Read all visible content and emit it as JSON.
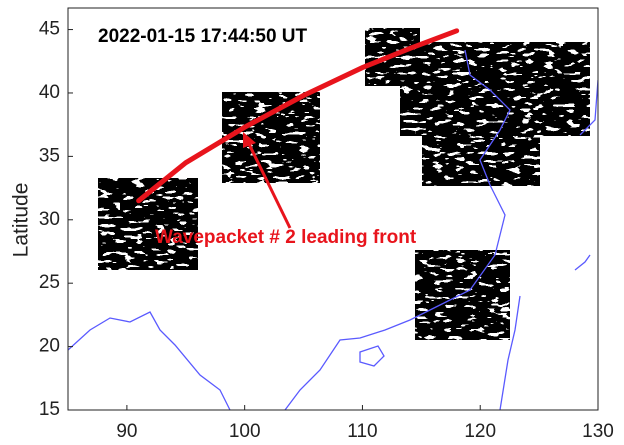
{
  "chart_data": {
    "type": "map",
    "timestamp": "2022-01-15 17:44:50 UT",
    "ylabel": "Latitude",
    "annotation": "Wavepacket # 2 leading front",
    "xlim": [
      85,
      130
    ],
    "xticks": [
      90,
      100,
      110,
      120,
      130
    ],
    "ylim": [
      15,
      46.7
    ],
    "yticks": [
      15,
      20,
      25,
      30,
      35,
      40,
      45
    ],
    "front": {
      "color": "#e8141c",
      "x": [
        91,
        95,
        100,
        105,
        110,
        114,
        118
      ],
      "y": [
        31.5,
        34.5,
        37.3,
        39.8,
        42,
        43.5,
        44.9
      ]
    }
  }
}
